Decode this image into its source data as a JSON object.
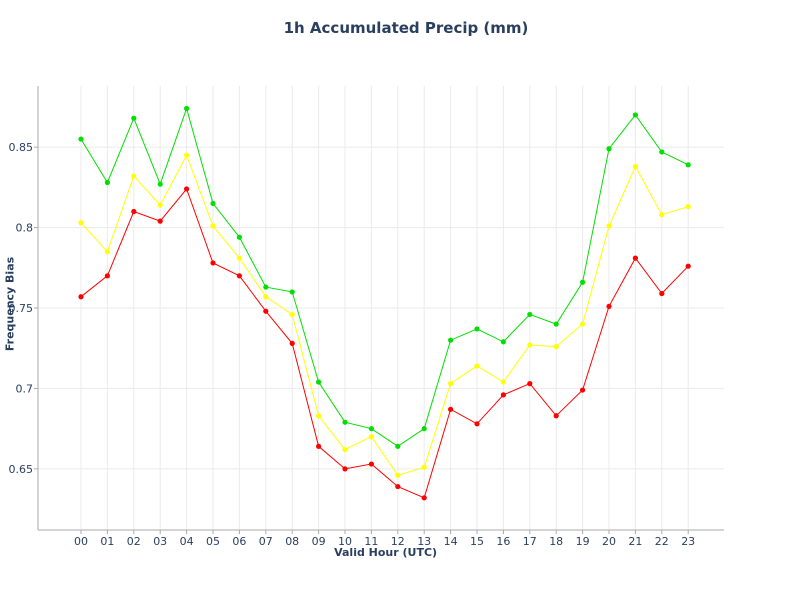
{
  "chart_data": {
    "type": "line",
    "title": "1h Accumulated Precip (mm)",
    "xlabel": "Valid Hour (UTC)",
    "ylabel": "Frequency Bias",
    "x": [
      "00",
      "01",
      "02",
      "03",
      "04",
      "05",
      "06",
      "07",
      "08",
      "09",
      "10",
      "11",
      "12",
      "13",
      "14",
      "15",
      "16",
      "17",
      "18",
      "19",
      "20",
      "21",
      "22",
      "23"
    ],
    "yticks": [
      "0.65",
      "0.7",
      "0.75",
      "0.8",
      "0.85"
    ],
    "ylim": [
      0.612,
      0.888
    ],
    "grid": true,
    "legend": "none",
    "series": [
      {
        "color": "#00e000",
        "values": [
          0.855,
          0.828,
          0.868,
          0.827,
          0.874,
          0.815,
          0.794,
          0.763,
          0.76,
          0.704,
          0.679,
          0.675,
          0.664,
          0.675,
          0.73,
          0.737,
          0.729,
          0.746,
          0.74,
          0.766,
          0.849,
          0.87,
          0.847,
          0.839
        ]
      },
      {
        "color": "#ffff00",
        "values": [
          0.803,
          0.785,
          0.832,
          0.814,
          0.845,
          0.801,
          0.781,
          0.757,
          0.746,
          0.683,
          0.662,
          0.67,
          0.646,
          0.651,
          0.703,
          0.714,
          0.704,
          0.727,
          0.726,
          0.74,
          0.801,
          0.838,
          0.808,
          0.813
        ]
      },
      {
        "color": "#ff0000",
        "values": [
          0.757,
          0.77,
          0.81,
          0.804,
          0.824,
          0.778,
          0.77,
          0.748,
          0.728,
          0.664,
          0.65,
          0.653,
          0.639,
          0.632,
          0.687,
          0.678,
          0.696,
          0.703,
          0.683,
          0.699,
          0.751,
          0.781,
          0.759,
          0.776
        ]
      }
    ]
  }
}
